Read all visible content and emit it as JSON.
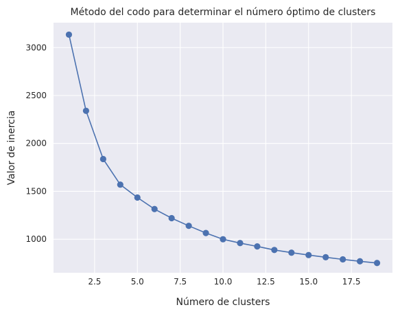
{
  "chart_data": {
    "type": "line",
    "title": "Método del codo para determinar el número óptimo de clusters",
    "xlabel": "Número de clusters",
    "ylabel": "Valor de inercia",
    "xlim": [
      0.1,
      19.9
    ],
    "ylim": [
      650,
      3260
    ],
    "x_ticks": [
      2.5,
      5.0,
      7.5,
      10.0,
      12.5,
      15.0,
      17.5
    ],
    "x_tick_labels": [
      "2.5",
      "5.0",
      "7.5",
      "10.0",
      "12.5",
      "15.0",
      "17.5"
    ],
    "y_ticks": [
      1000,
      1500,
      2000,
      2500,
      3000
    ],
    "y_tick_labels": [
      "1000",
      "1500",
      "2000",
      "2500",
      "3000"
    ],
    "grid": true,
    "background": "#eaeaf2",
    "grid_color": "#ffffff",
    "series_color": "#4c72b0",
    "x": [
      1,
      2,
      3,
      4,
      5,
      6,
      7,
      8,
      9,
      10,
      11,
      12,
      13,
      14,
      15,
      16,
      17,
      18,
      19
    ],
    "series": [
      {
        "values": [
          3135,
          2340,
          1837,
          1570,
          1435,
          1315,
          1220,
          1140,
          1065,
          1000,
          960,
          925,
          888,
          860,
          835,
          812,
          790,
          770,
          752
        ]
      }
    ]
  }
}
